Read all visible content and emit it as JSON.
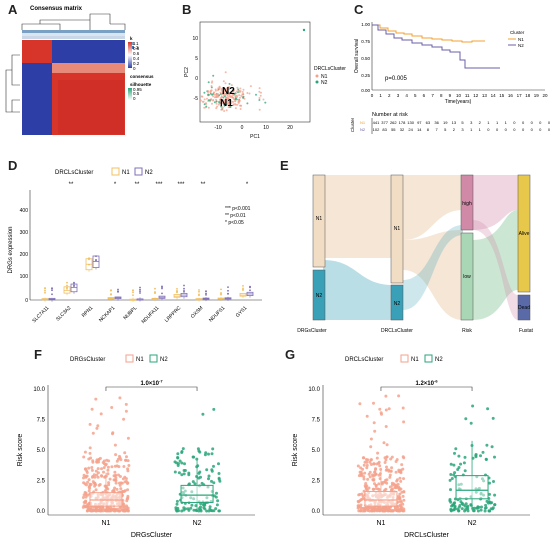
{
  "panels": {
    "A": {
      "label": "A",
      "title": "Consensus matrix",
      "legend": {
        "k_title": "k",
        "k_items": [
          "1",
          "2"
        ],
        "consensus_title": "consensus",
        "consensus_ticks": [
          "1",
          "0.8",
          "0.6",
          "0.4",
          "0.2",
          "0"
        ],
        "silhouette_title": "silhouette",
        "silhouette_ticks": [
          "0.95",
          "0.5",
          "0"
        ]
      }
    },
    "B": {
      "label": "B",
      "xlabel": "PC1",
      "ylabel": "PC2",
      "xticks": [
        "-10",
        "0",
        "10",
        "20"
      ],
      "yticks": [
        "10",
        "5",
        "0",
        "-5"
      ],
      "legend_title": "DRCLsCluster",
      "legend_items": [
        "N1",
        "N2"
      ],
      "centroid_labels": [
        "N2",
        "N1"
      ]
    },
    "C": {
      "label": "C",
      "ylabel": "Overall survival",
      "xlabel": "Time(years)",
      "xticks": [
        "0",
        "1",
        "2",
        "3",
        "4",
        "5",
        "6",
        "7",
        "8",
        "9",
        "10",
        "11",
        "12",
        "13",
        "14",
        "15",
        "16",
        "17",
        "18",
        "19",
        "20"
      ],
      "yticks": [
        "1.00",
        "0.75",
        "0.50",
        "0.25",
        "0.00"
      ],
      "pvalue": "p=0.005",
      "legend_title": "Cluster",
      "legend_items": [
        "N1",
        "N2"
      ],
      "risk_title": "Number at risk",
      "risk_ylabel": "Cluster",
      "risk_rows": [
        {
          "name": "N1",
          "values": [
            "441",
            "377",
            "262",
            "178",
            "130",
            "97",
            "63",
            "36",
            "19",
            "13",
            "5",
            "3",
            "2",
            "1",
            "1",
            "1",
            "0",
            "0",
            "0",
            "0",
            "0"
          ]
        },
        {
          "name": "N2",
          "values": [
            "102",
            "83",
            "55",
            "32",
            "24",
            "14",
            "8",
            "7",
            "5",
            "2",
            "3",
            "1",
            "1",
            "0",
            "0",
            "0",
            "0",
            "0",
            "0",
            "0",
            "0"
          ]
        }
      ]
    },
    "D": {
      "label": "D",
      "legend_title": "DRCLsCluster",
      "legend_items": [
        "N1",
        "N2"
      ],
      "ylabel": "DRGs expression",
      "yticks": [
        "400",
        "300",
        "200",
        "100",
        "0"
      ],
      "sig_legend": [
        "*** p<0.001",
        "** p<0.01",
        "* p<0.05"
      ]
    },
    "E": {
      "label": "E",
      "axis_labels": [
        "DRGsCluster",
        "DRCLsCluster",
        "Risk",
        "Fustat"
      ],
      "node_labels": [
        "N1",
        "N2",
        "N1",
        "N2",
        "high",
        "low",
        "Alive",
        "Dead"
      ]
    },
    "F": {
      "label": "F",
      "legend_title": "DRGsCluster",
      "legend_items": [
        "N1",
        "N2"
      ],
      "xlabel": "DRGsCluster",
      "ylabel": "Risk score",
      "xticks": [
        "N1",
        "N2"
      ],
      "yticks": [
        "10.0",
        "7.5",
        "5.0",
        "2.5",
        "0.0"
      ],
      "pvalue_text": "1.0×10",
      "pvalue_exp": "-7"
    },
    "G": {
      "label": "G",
      "legend_title": "DRCLsCluster",
      "legend_items": [
        "N1",
        "N2"
      ],
      "xlabel": "DRCLsCluster",
      "ylabel": "Risk score",
      "xticks": [
        "N1",
        "N2"
      ],
      "yticks": [
        "10.0",
        "7.5",
        "5.0",
        "2.5",
        "0.0"
      ],
      "pvalue_text": "1.2×10",
      "pvalue_exp": "-6"
    }
  },
  "colors": {
    "n1": "#f4a28c",
    "n2": "#2aa67a",
    "n1_km": "#f0a030",
    "n2_km": "#6b5fa8",
    "box_n1": "#f0c060",
    "box_n2": "#8070b8",
    "sankey_n1": "#f1dcc4",
    "sankey_n2": "#3aa0b8",
    "sankey_high": "#d08aa8",
    "sankey_low": "#a9d7b5",
    "sankey_alive": "#e8c84a",
    "sankey_dead": "#5a6aa8",
    "heat_red": "#d7352a",
    "heat_blue": "#2d3fa6"
  },
  "chart_data": [
    {
      "panel": "D",
      "type": "bar",
      "title": "",
      "ylabel": "DRGs expression",
      "ylim": [
        0,
        400
      ],
      "categories": [
        "SLC7A11",
        "SLC3A2",
        "RPN1",
        "NCKAP1",
        "NUBPL",
        "NDUFA11",
        "LRPPRC",
        "OXSM",
        "NDUFS1",
        "GYS1"
      ],
      "significance": [
        "",
        "**",
        "",
        "*",
        "**",
        "***",
        "***",
        "**",
        "",
        "*"
      ],
      "series": [
        {
          "name": "N1",
          "medians": [
            3,
            35,
            130,
            6,
            2,
            4,
            14,
            3,
            5,
            18
          ],
          "q1": [
            1,
            25,
            110,
            4,
            1,
            3,
            10,
            2,
            3,
            14
          ],
          "q3": [
            5,
            48,
            150,
            9,
            3,
            6,
            20,
            5,
            7,
            24
          ]
        },
        {
          "name": "N2",
          "medians": [
            3,
            45,
            140,
            8,
            3,
            10,
            18,
            5,
            6,
            22
          ],
          "q1": [
            1,
            30,
            118,
            5,
            2,
            6,
            12,
            3,
            4,
            16
          ],
          "q3": [
            6,
            58,
            160,
            11,
            4,
            14,
            24,
            7,
            8,
            28
          ]
        }
      ]
    },
    {
      "panel": "F",
      "type": "scatter",
      "xlabel": "DRGsCluster",
      "ylabel": "Risk score",
      "ylim": [
        0,
        10
      ],
      "categories": [
        "N1",
        "N2"
      ],
      "box": [
        {
          "name": "N1",
          "q1": 0.4,
          "median": 0.9,
          "q3": 1.5
        },
        {
          "name": "N2",
          "q1": 0.7,
          "median": 1.3,
          "q3": 2.1
        }
      ]
    },
    {
      "panel": "G",
      "type": "scatter",
      "xlabel": "DRCLsCluster",
      "ylabel": "Risk score",
      "ylim": [
        0,
        10
      ],
      "categories": [
        "N1",
        "N2"
      ],
      "box": [
        {
          "name": "N1",
          "q1": 0.4,
          "median": 0.9,
          "q3": 1.6
        },
        {
          "name": "N2",
          "q1": 1.0,
          "median": 1.7,
          "q3": 2.9
        }
      ]
    }
  ]
}
